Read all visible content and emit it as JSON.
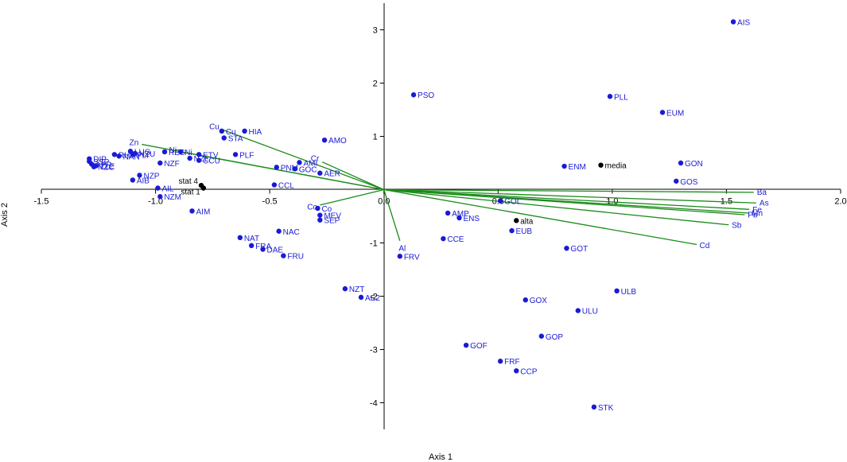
{
  "chart_data": {
    "type": "scatter",
    "subtype": "biplot",
    "xlabel": "Axis 1",
    "ylabel": "Axis 2",
    "xlim": [
      -1.5,
      2.0
    ],
    "ylim": [
      -4.5,
      3.5
    ],
    "x_ticks": [
      "-1.5",
      "-1.0",
      "-0.5",
      "0.0",
      "0.5",
      "1.0",
      "1.5",
      "2.0"
    ],
    "x_tick_values": [
      -1.5,
      -1.0,
      -0.5,
      0.0,
      0.5,
      1.0,
      1.5,
      2.0
    ],
    "y_ticks": [
      "3",
      "2",
      "1",
      "-1",
      "-2",
      "-3",
      "-4"
    ],
    "y_tick_values": [
      3,
      2,
      1,
      -1,
      -2,
      -3,
      -4
    ],
    "colors": {
      "sample": "#1a1ad6",
      "supplementary": "#000000",
      "vector": "#1a8c1a",
      "axis": "#000000"
    },
    "sample_points": [
      {
        "label": "AIS",
        "x": 1.53,
        "y": 3.15
      },
      {
        "label": "PSO",
        "x": 0.13,
        "y": 1.78
      },
      {
        "label": "PLL",
        "x": 0.99,
        "y": 1.75
      },
      {
        "label": "EUM",
        "x": 1.22,
        "y": 1.45
      },
      {
        "label": "GON",
        "x": 1.3,
        "y": 0.5
      },
      {
        "label": "GOS",
        "x": 1.28,
        "y": 0.16
      },
      {
        "label": "ENM",
        "x": 0.79,
        "y": 0.44
      },
      {
        "label": "AMO",
        "x": -0.26,
        "y": 0.93
      },
      {
        "label": "HIA",
        "x": -0.61,
        "y": 1.1
      },
      {
        "label": "Cu",
        "x": -0.71,
        "y": 1.1
      },
      {
        "label": "STA",
        "x": -0.7,
        "y": 0.97
      },
      {
        "label": "PLF",
        "x": -0.65,
        "y": 0.66
      },
      {
        "label": "AMI",
        "x": -0.37,
        "y": 0.51
      },
      {
        "label": "PNM",
        "x": -0.47,
        "y": 0.42
      },
      {
        "label": "GOC",
        "x": -0.39,
        "y": 0.39
      },
      {
        "label": "AER",
        "x": -0.28,
        "y": 0.31
      },
      {
        "label": "CCL",
        "x": -0.48,
        "y": 0.09
      },
      {
        "label": "ETV",
        "x": -0.81,
        "y": 0.66
      },
      {
        "label": "Ni",
        "x": -0.89,
        "y": 0.71
      },
      {
        "label": "CCU",
        "x": -0.81,
        "y": 0.55
      },
      {
        "label": "RES",
        "x": -0.96,
        "y": 0.71
      },
      {
        "label": "NZL",
        "x": -0.85,
        "y": 0.59
      },
      {
        "label": "NZF",
        "x": -0.98,
        "y": 0.5
      },
      {
        "label": "LUG",
        "x": -1.11,
        "y": 0.72
      },
      {
        "label": "NZU",
        "x": -1.09,
        "y": 0.68
      },
      {
        "label": "PLI",
        "x": -1.1,
        "y": 0.66
      },
      {
        "label": "NAN",
        "x": -1.16,
        "y": 0.63
      },
      {
        "label": "RHA",
        "x": -1.18,
        "y": 0.66
      },
      {
        "label": "DIP",
        "x": -1.29,
        "y": 0.58
      },
      {
        "label": "SSP",
        "x": -1.29,
        "y": 0.53
      },
      {
        "label": "APP",
        "x": -1.28,
        "y": 0.48
      },
      {
        "label": "NZC",
        "x": -1.27,
        "y": 0.43
      },
      {
        "label": "ZLE",
        "x": -1.26,
        "y": 0.45
      },
      {
        "label": "NZP",
        "x": -1.07,
        "y": 0.27
      },
      {
        "label": "AIB",
        "x": -1.1,
        "y": 0.18
      },
      {
        "label": "AIL",
        "x": -0.99,
        "y": 0.03
      },
      {
        "label": "NZM",
        "x": -0.98,
        "y": -0.13
      },
      {
        "label": "AIM",
        "x": -0.84,
        "y": -0.4
      },
      {
        "label": "Co",
        "x": -0.29,
        "y": -0.35
      },
      {
        "label": "MEV",
        "x": -0.28,
        "y": -0.48
      },
      {
        "label": "SEP",
        "x": -0.28,
        "y": -0.57
      },
      {
        "label": "NAC",
        "x": -0.46,
        "y": -0.78
      },
      {
        "label": "NAT",
        "x": -0.63,
        "y": -0.9
      },
      {
        "label": "FRA",
        "x": -0.58,
        "y": -1.05
      },
      {
        "label": "DAE",
        "x": -0.53,
        "y": -1.12
      },
      {
        "label": "FRU",
        "x": -0.44,
        "y": -1.24
      },
      {
        "label": "FRV",
        "x": 0.07,
        "y": -1.25
      },
      {
        "label": "NZT",
        "x": -0.17,
        "y": -1.86
      },
      {
        "label": "AE2",
        "x": -0.1,
        "y": -2.02
      },
      {
        "label": "AMP",
        "x": 0.28,
        "y": -0.44
      },
      {
        "label": "ENS",
        "x": 0.33,
        "y": -0.53
      },
      {
        "label": "GOL",
        "x": 0.51,
        "y": -0.21
      },
      {
        "label": "EUB",
        "x": 0.56,
        "y": -0.77
      },
      {
        "label": "CCE",
        "x": 0.26,
        "y": -0.92
      },
      {
        "label": "GOT",
        "x": 0.8,
        "y": -1.1
      },
      {
        "label": "ULB",
        "x": 1.02,
        "y": -1.9
      },
      {
        "label": "ULU",
        "x": 0.85,
        "y": -2.27
      },
      {
        "label": "GOX",
        "x": 0.62,
        "y": -2.07
      },
      {
        "label": "GOP",
        "x": 0.69,
        "y": -2.75
      },
      {
        "label": "GOF",
        "x": 0.36,
        "y": -2.92
      },
      {
        "label": "FRF",
        "x": 0.51,
        "y": -3.22
      },
      {
        "label": "CCP",
        "x": 0.58,
        "y": -3.4
      },
      {
        "label": "STK",
        "x": 0.92,
        "y": -4.08
      }
    ],
    "supplementary_points": [
      {
        "label": "media",
        "x": 0.95,
        "y": 0.46
      },
      {
        "label": "alta",
        "x": 0.58,
        "y": -0.58
      },
      {
        "label": "stat 4",
        "x": -0.8,
        "y": 0.08
      },
      {
        "label": "stat 1",
        "x": -0.79,
        "y": 0.03
      }
    ],
    "vectors": [
      {
        "label": "Ba",
        "x": 1.62,
        "y": -0.05
      },
      {
        "label": "As",
        "x": 1.63,
        "y": -0.25
      },
      {
        "label": "Fe",
        "x": 1.6,
        "y": -0.37
      },
      {
        "label": "Mn",
        "x": 1.6,
        "y": -0.44
      },
      {
        "label": "Pb",
        "x": 1.58,
        "y": -0.47
      },
      {
        "label": "Sb",
        "x": 1.51,
        "y": -0.66
      },
      {
        "label": "Cd",
        "x": 1.37,
        "y": -1.03
      },
      {
        "label": "Al",
        "x": 0.07,
        "y": -0.96
      },
      {
        "label": "Co",
        "x": -0.28,
        "y": -0.29
      },
      {
        "label": "Cr",
        "x": -0.27,
        "y": 0.52
      },
      {
        "label": "Cu",
        "x": -0.71,
        "y": 1.13
      },
      {
        "label": "Ni",
        "x": -0.89,
        "y": 0.71
      },
      {
        "label": "Zn",
        "x": -1.06,
        "y": 0.85
      }
    ]
  }
}
